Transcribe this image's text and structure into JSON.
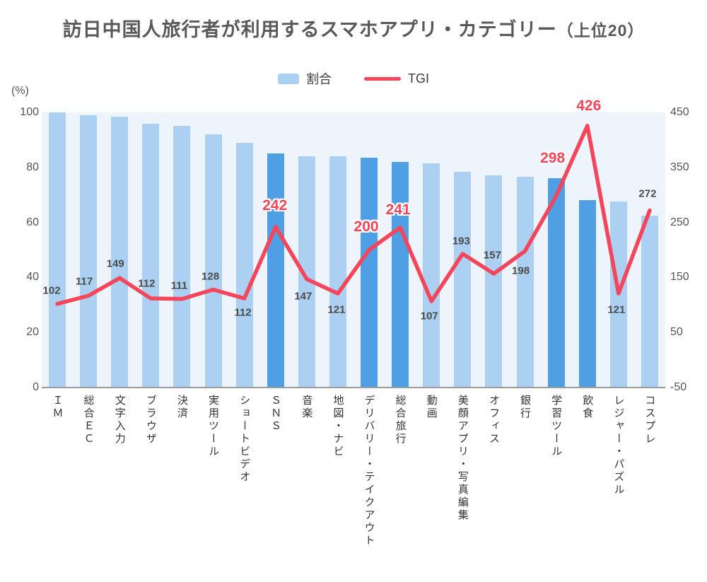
{
  "title": {
    "main": "訪日中国人旅行者が利用するスマホアプリ・カテゴリー",
    "suffix": "（上位20）"
  },
  "legend": {
    "ratio_label": "割合",
    "tgi_label": "TGI"
  },
  "left_axis": {
    "unit": "(%)",
    "ticks": [
      100,
      80,
      60,
      40,
      20,
      0
    ],
    "range": [
      0,
      100
    ]
  },
  "right_axis": {
    "ticks": [
      450,
      350,
      250,
      150,
      50,
      -50
    ],
    "range": [
      -50,
      450
    ]
  },
  "chart_data": {
    "type": "bar",
    "title": "訪日中国人旅行者が利用するスマホアプリ・カテゴリー（上位20）",
    "categories": [
      "ＩＭ",
      "総合ＥＣ",
      "文字入力",
      "ブラウザ",
      "決済",
      "実用ツール",
      "ショートビデオ",
      "ＳＮＳ",
      "音楽",
      "地図・ナビ",
      "デリバリー・テイクアウト",
      "総合旅行",
      "動画",
      "美顔アプリ・写真編集",
      "オフィス",
      "銀行",
      "学習ツール",
      "飲食",
      "レジャー・パズル",
      "コスプレ"
    ],
    "series": [
      {
        "name": "割合",
        "type": "bar",
        "axis": "left",
        "unit": "%",
        "values": [
          100,
          99,
          98.5,
          96,
          95,
          92,
          89,
          85,
          84,
          84,
          83.5,
          82,
          81.5,
          78.5,
          77,
          76.5,
          76,
          68,
          67.5,
          62.5
        ]
      },
      {
        "name": "TGI",
        "type": "line",
        "axis": "right",
        "values": [
          102,
          117,
          149,
          112,
          111,
          128,
          112,
          242,
          147,
          121,
          200,
          241,
          107,
          193,
          157,
          198,
          298,
          426,
          121,
          272
        ]
      }
    ],
    "highlight_indices": [
      7,
      10,
      11,
      16,
      17
    ],
    "highlighted_categories": [
      "ＳＮＳ",
      "デリバリー・テイクアウト",
      "総合旅行",
      "学習ツール",
      "飲食"
    ],
    "xlabel": "",
    "ylabel_left": "(%)",
    "ylim_left": [
      0,
      100
    ],
    "ylim_right": [
      -50,
      450
    ],
    "grid": false,
    "legend_position": "top-center",
    "colors": {
      "bar_light": "#ABD0F2",
      "bar_dark": "#4F9FE4",
      "plot_background": "#EDF4FB",
      "line_red": "#F5455A",
      "label_gray": "#4A4A4A",
      "axis_text": "#555555",
      "title_text": "#595959",
      "category_text": "#333333",
      "baseline": "#9C9C9C"
    }
  }
}
